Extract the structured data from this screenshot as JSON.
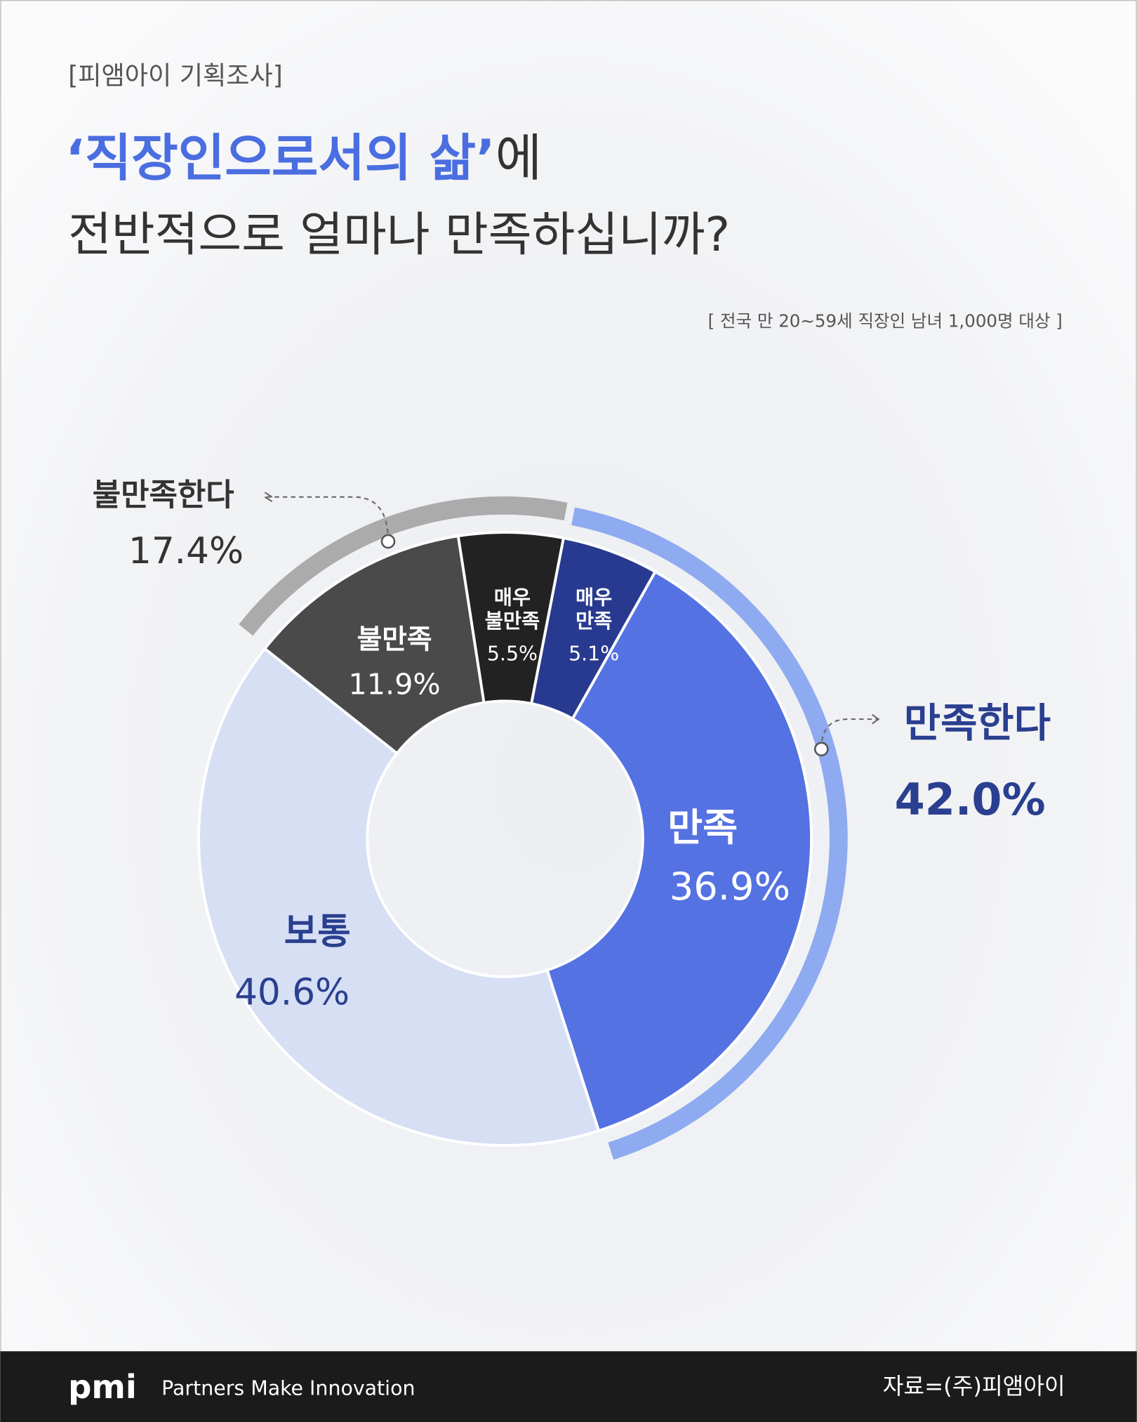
{
  "header": {
    "tag": "[피앰아이 기획조사]",
    "title_highlight": "‘직장인으로서의 삶’",
    "title_rest": "에",
    "title_line2": "전반적으로 얼마나 만족하십니까?",
    "subtitle": "[ 전국 만 20~59세 직장인 남녀 1,000명 대상 ]"
  },
  "chart_data": {
    "type": "donut",
    "categories": [
      [
        "매우",
        "만족"
      ],
      [
        "만족"
      ],
      [
        "보통"
      ],
      [
        "불만족"
      ],
      [
        "매우",
        "불만족"
      ]
    ],
    "values": [
      5.1,
      36.9,
      40.6,
      11.9,
      5.5
    ],
    "value_labels": [
      "5.1%",
      "36.9%",
      "40.6%",
      "11.9%",
      "5.5%"
    ],
    "colors": [
      "#283a8f",
      "#5572e2",
      "#d6dff4",
      "#4a4a4a",
      "#222222"
    ],
    "groups": [
      {
        "name": "만족한다",
        "value": 42.0,
        "value_label": "42.0%",
        "color": "#8eaaf0"
      },
      {
        "name": "불만족한다",
        "value": 17.4,
        "value_label": "17.4%",
        "color": "#ababab"
      }
    ]
  },
  "footer": {
    "logo": "pmi",
    "slogan": "Partners Make Innovation",
    "source": "자료=(주)피앰아이"
  }
}
